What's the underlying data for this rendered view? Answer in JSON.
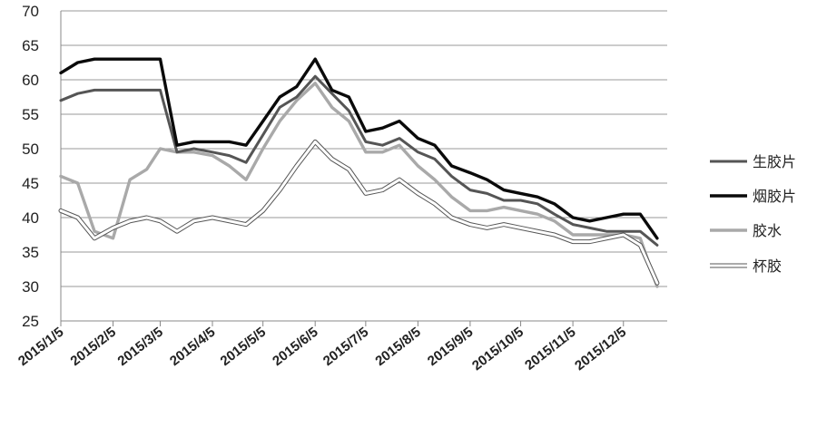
{
  "chart_data": {
    "type": "line",
    "title": "",
    "xlabel": "",
    "ylabel": "",
    "ylim": [
      25,
      70
    ],
    "y_ticks": [
      "70",
      "65",
      "60",
      "55",
      "50",
      "45",
      "40",
      "35",
      "30",
      "25"
    ],
    "x_tick_labels": [
      "2015/1/5",
      "2015/2/5",
      "2015/3/5",
      "2015/4/5",
      "2015/5/5",
      "2015/6/5",
      "2015/7/5",
      "2015/8/5",
      "2015/9/5",
      "2015/10/5",
      "2015/11/5",
      "2015/12/5"
    ],
    "grid": "horizontal",
    "legend_position": "right",
    "x": [
      "2015/1/5",
      "2015/1/15",
      "2015/1/25",
      "2015/2/5",
      "2015/2/15",
      "2015/2/25",
      "2015/3/5",
      "2015/3/15",
      "2015/3/25",
      "2015/4/5",
      "2015/4/15",
      "2015/4/25",
      "2015/5/5",
      "2015/5/15",
      "2015/5/25",
      "2015/6/5",
      "2015/6/15",
      "2015/6/25",
      "2015/7/5",
      "2015/7/15",
      "2015/7/25",
      "2015/8/5",
      "2015/8/15",
      "2015/8/25",
      "2015/9/5",
      "2015/9/15",
      "2015/9/25",
      "2015/10/5",
      "2015/10/15",
      "2015/10/25",
      "2015/11/5",
      "2015/11/15",
      "2015/11/25",
      "2015/12/5",
      "2015/12/15",
      "2015/12/25"
    ],
    "series": [
      {
        "name": "生胶片",
        "color": "#555555",
        "width": 3,
        "values": [
          57.0,
          58.0,
          58.5,
          58.5,
          58.5,
          58.5,
          58.5,
          49.5,
          50.0,
          49.5,
          49.0,
          48.0,
          52.0,
          56.0,
          57.5,
          60.5,
          58.0,
          55.5,
          51.0,
          50.5,
          51.5,
          49.5,
          48.5,
          46.0,
          44.0,
          43.5,
          42.5,
          42.5,
          42.0,
          40.5,
          39.0,
          38.5,
          38.0,
          38.0,
          38.0,
          36.0
        ]
      },
      {
        "name": "烟胶片",
        "color": "#0a0a0a",
        "width": 3.4,
        "values": [
          61.0,
          62.5,
          63.0,
          63.0,
          63.0,
          63.0,
          63.0,
          50.5,
          51.0,
          51.0,
          51.0,
          50.5,
          54.0,
          57.5,
          59.0,
          63.0,
          58.5,
          57.5,
          52.5,
          53.0,
          54.0,
          51.5,
          50.5,
          47.5,
          46.5,
          45.5,
          44.0,
          43.5,
          43.0,
          42.0,
          40.0,
          39.5,
          40.0,
          40.5,
          40.5,
          37.0
        ]
      },
      {
        "name": "胶水",
        "color": "#a9a9a9",
        "width": 3.4,
        "values": [
          46.0,
          45.0,
          38.0,
          37.0,
          45.5,
          47.0,
          50.0,
          49.5,
          49.5,
          49.0,
          47.5,
          45.5,
          50.0,
          54.0,
          57.0,
          59.5,
          56.0,
          54.0,
          49.5,
          49.5,
          50.5,
          47.5,
          45.5,
          43.0,
          41.0,
          41.0,
          41.5,
          41.0,
          40.5,
          39.5,
          37.5,
          37.5,
          37.5,
          37.5,
          37.0,
          30.0
        ]
      },
      {
        "name": "杯胶",
        "color": "#ffffff",
        "outline": "#555555",
        "width": 3,
        "values": [
          41.0,
          40.0,
          37.0,
          38.5,
          39.5,
          40.0,
          39.5,
          38.0,
          39.5,
          40.0,
          39.5,
          39.0,
          41.0,
          44.0,
          47.5,
          51.0,
          48.5,
          47.0,
          43.5,
          44.0,
          45.5,
          43.5,
          42.0,
          40.0,
          39.0,
          38.5,
          39.0,
          38.5,
          38.0,
          37.5,
          36.5,
          36.5,
          37.0,
          37.5,
          36.0,
          30.5
        ]
      }
    ]
  }
}
